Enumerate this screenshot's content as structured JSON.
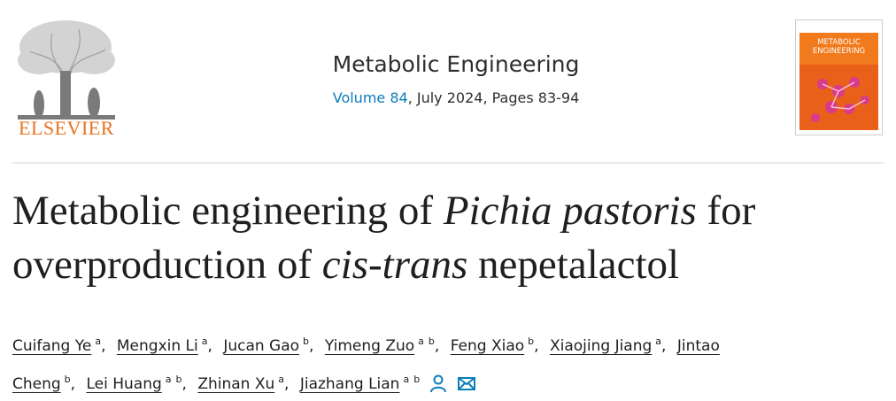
{
  "header": {
    "publisher": "ELSEVIER",
    "journal": "Metabolic Engineering",
    "volume": "Volume 84",
    "issue_info": ", July 2024, Pages 83-94",
    "cover_title": "METABOLIC ENGINEERING"
  },
  "title": {
    "segments": [
      {
        "text": "Metabolic engineering of ",
        "italic": false
      },
      {
        "text": "Pichia pastoris",
        "italic": true
      },
      {
        "text": " for overproduction of ",
        "italic": false
      },
      {
        "text": "cis-trans",
        "italic": true
      },
      {
        "text": " nepetalactol",
        "italic": false
      }
    ]
  },
  "authors": {
    "separator": ",",
    "list": [
      {
        "name": "Cuifang Ye",
        "affiliations": [
          "a"
        ]
      },
      {
        "name": "Mengxin Li",
        "affiliations": [
          "a"
        ]
      },
      {
        "name": "Jucan Gao",
        "affiliations": [
          "b"
        ]
      },
      {
        "name": "Yimeng Zuo",
        "affiliations": [
          "a",
          "b"
        ]
      },
      {
        "name": "Feng Xiao",
        "affiliations": [
          "b"
        ]
      },
      {
        "name": "Xiaojing Jiang",
        "affiliations": [
          "a"
        ]
      },
      {
        "name": "Jintao Cheng",
        "affiliations": [
          "b"
        ]
      },
      {
        "name": "Lei Huang",
        "affiliations": [
          "a",
          "b"
        ]
      },
      {
        "name": "Zhinan Xu",
        "affiliations": [
          "a"
        ]
      },
      {
        "name": "Jiazhang Lian",
        "affiliations": [
          "a",
          "b"
        ]
      }
    ]
  }
}
